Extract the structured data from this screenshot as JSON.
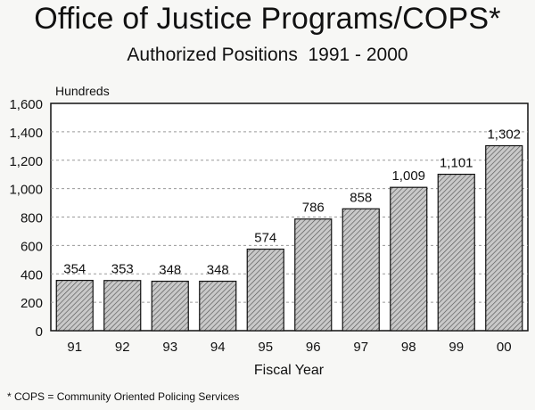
{
  "chart_data": {
    "type": "bar",
    "title": "Office of Justice Programs/COPS*",
    "subtitle": "Authorized Positions  1991 - 2000",
    "ylabel": "Hundreds",
    "xlabel": "Fiscal Year",
    "categories": [
      "91",
      "92",
      "93",
      "94",
      "95",
      "96",
      "97",
      "98",
      "99",
      "00"
    ],
    "values": [
      354,
      353,
      348,
      348,
      574,
      786,
      858,
      1009,
      1101,
      1302
    ],
    "value_labels": [
      "354",
      "353",
      "348",
      "348",
      "574",
      "786",
      "858",
      "1,009",
      "1,101",
      "1,302"
    ],
    "ylim": [
      0,
      1600
    ],
    "yticks": [
      0,
      200,
      400,
      600,
      800,
      1000,
      1200,
      1400,
      1600
    ],
    "ytick_labels": [
      "0",
      "200",
      "400",
      "600",
      "800",
      "1,000",
      "1,200",
      "1,400",
      "1,600"
    ],
    "grid": true,
    "footnote": "* COPS = Community Oriented Policing Services",
    "colors": {
      "background": "#f7f7f5",
      "plot_background": "#ffffff",
      "bar_fill": "#c9c9c9",
      "bar_hatch": "#555555",
      "axis": "#111111",
      "grid": "#9a9a9a"
    }
  }
}
